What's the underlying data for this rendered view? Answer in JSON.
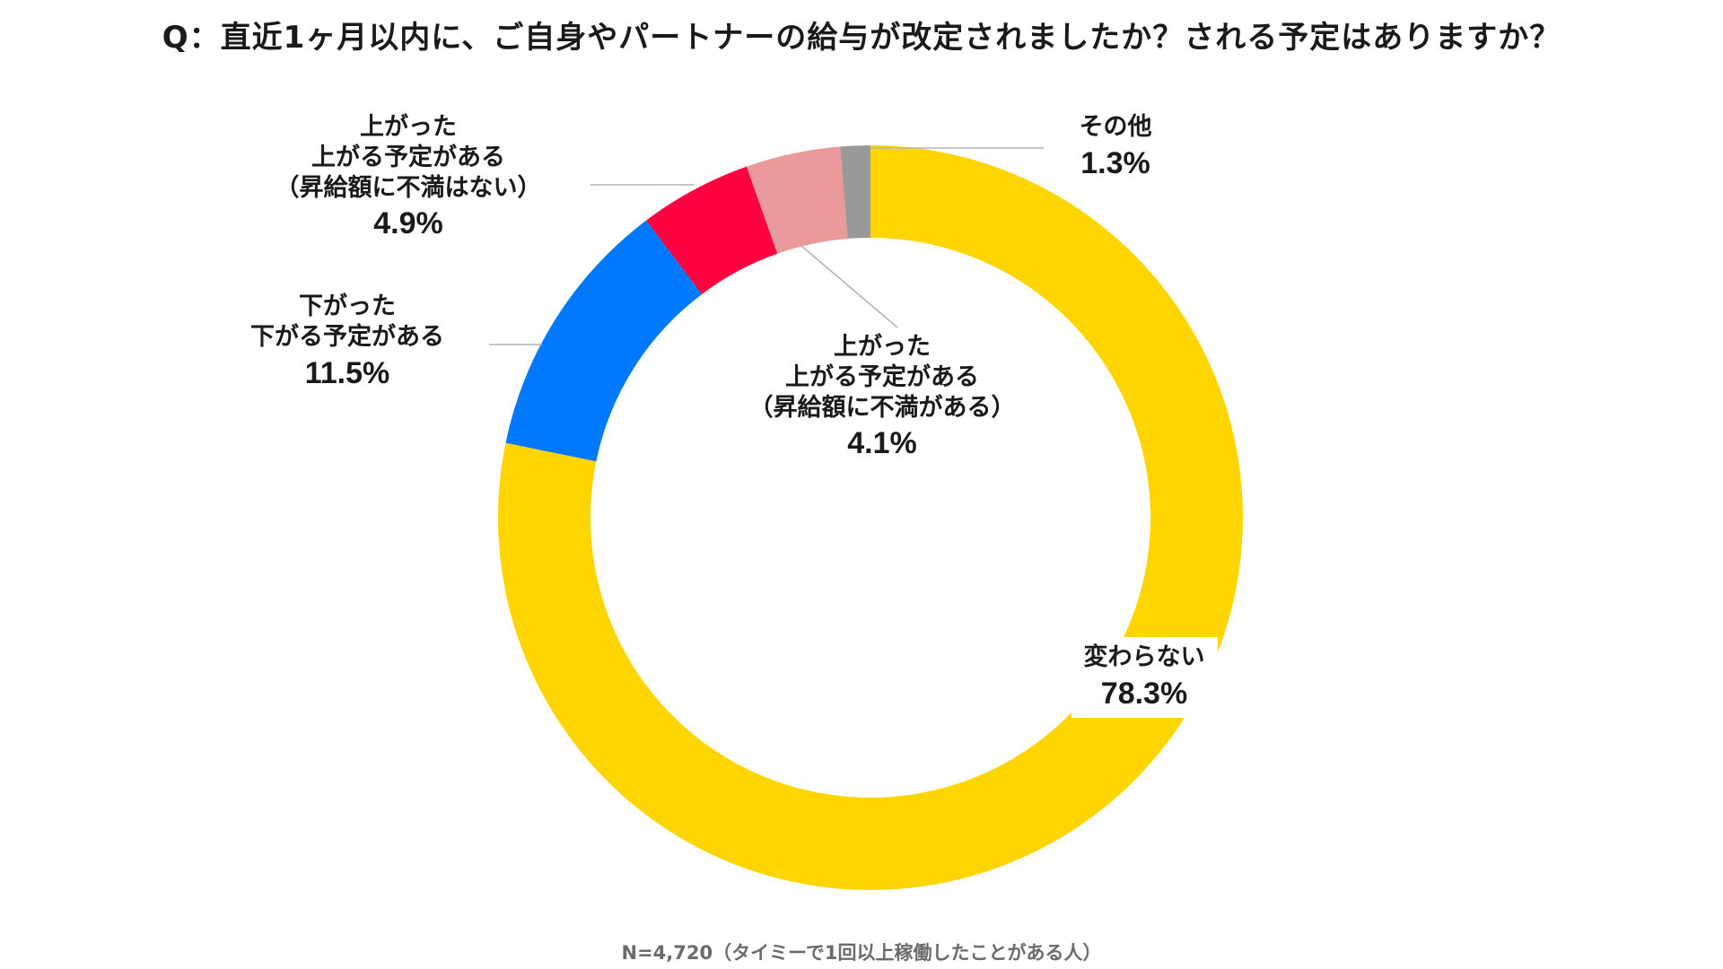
{
  "title": "Q：直近1ヶ月以内に、ご自身やパートナーの給与が改定されましたか？される予定はありますか？",
  "footnote": "N=4,720（タイミーで1回以上稼働したことがある人）",
  "chart_data": {
    "type": "pie",
    "donut": true,
    "title": "Q：直近1ヶ月以内に、ご自身やパートナーの給与が改定されましたか？される予定はありますか？",
    "slices": [
      {
        "label": "変わらない",
        "value": 78.3,
        "display": "78.3%",
        "color": "#FFD500"
      },
      {
        "label": "下がった\n下がる予定がある",
        "value": 11.5,
        "display": "11.5%",
        "color": "#0078FF"
      },
      {
        "label": "上がった\n上がる予定がある\n（昇給額に不満はない）",
        "value": 4.9,
        "display": "4.9%",
        "color": "#FF0040"
      },
      {
        "label": "上がった\n上がる予定がある\n（昇給額に不満がある）",
        "value": 4.1,
        "display": "4.1%",
        "color": "#EA9A9A"
      },
      {
        "label": "その他",
        "value": 1.3,
        "display": "1.3%",
        "color": "#999999"
      }
    ],
    "start": "12 o'clock",
    "direction": "clockwise",
    "legend": "none"
  }
}
